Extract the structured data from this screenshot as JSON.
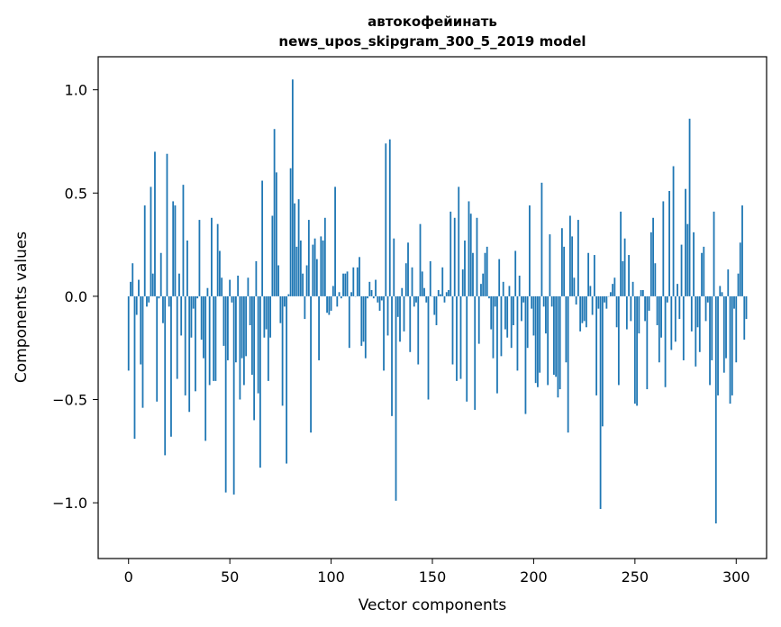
{
  "chart_data": {
    "type": "bar",
    "title_line1": "автокофейинать",
    "title_line2": "news_upos_skipgram_300_5_2019 model",
    "xlabel": "Vector components",
    "ylabel": "Components values",
    "xlim": [
      -15,
      315
    ],
    "ylim": [
      -1.27,
      1.16
    ],
    "xticks": [
      0,
      50,
      100,
      150,
      200,
      250,
      300
    ],
    "xtick_labels": [
      "0",
      "50",
      "100",
      "150",
      "200",
      "250",
      "300"
    ],
    "yticks": [
      -1.0,
      -0.5,
      0.0,
      0.5,
      1.0
    ],
    "ytick_labels": [
      "−1.0",
      "−0.5",
      "0.0",
      "0.5",
      "1.0"
    ],
    "bar_color": "#1f77b4",
    "grid": false,
    "values": [
      -0.36,
      0.07,
      0.16,
      -0.69,
      -0.09,
      0.08,
      -0.33,
      -0.54,
      0.44,
      -0.05,
      -0.03,
      0.53,
      0.11,
      0.7,
      -0.51,
      -0.01,
      0.21,
      -0.13,
      -0.77,
      0.69,
      -0.05,
      -0.68,
      0.46,
      0.44,
      -0.4,
      0.11,
      -0.19,
      0.54,
      -0.48,
      0.27,
      -0.56,
      -0.2,
      -0.06,
      -0.46,
      -0.01,
      0.37,
      -0.21,
      -0.3,
      -0.7,
      0.04,
      -0.43,
      0.38,
      -0.41,
      -0.41,
      0.35,
      0.22,
      0.09,
      -0.24,
      -0.95,
      -0.31,
      0.08,
      -0.03,
      -0.96,
      -0.32,
      0.1,
      -0.5,
      -0.3,
      -0.43,
      -0.29,
      0.09,
      -0.14,
      -0.38,
      -0.6,
      0.17,
      -0.47,
      -0.83,
      0.56,
      -0.2,
      -0.16,
      -0.41,
      -0.2,
      0.39,
      0.81,
      0.6,
      0.15,
      -0.13,
      -0.53,
      -0.05,
      -0.81,
      0.01,
      0.62,
      1.05,
      0.45,
      0.24,
      0.47,
      0.27,
      0.11,
      -0.11,
      0.15,
      0.37,
      -0.66,
      0.25,
      0.28,
      0.18,
      -0.31,
      0.29,
      0.27,
      0.38,
      -0.08,
      -0.09,
      -0.07,
      0.05,
      0.53,
      -0.05,
      0.02,
      -0.01,
      0.11,
      0.11,
      0.12,
      -0.25,
      0.02,
      0.14,
      0.0,
      0.14,
      0.19,
      -0.24,
      -0.22,
      -0.3,
      -0.01,
      0.07,
      0.03,
      -0.01,
      0.08,
      -0.03,
      -0.07,
      -0.02,
      -0.36,
      0.74,
      -0.19,
      0.76,
      -0.58,
      0.28,
      -0.99,
      -0.1,
      -0.22,
      0.04,
      -0.17,
      0.16,
      0.26,
      -0.27,
      0.14,
      -0.05,
      -0.03,
      -0.33,
      0.35,
      0.12,
      0.04,
      -0.03,
      -0.5,
      0.17,
      0.0,
      -0.09,
      -0.14,
      0.03,
      0.01,
      0.14,
      -0.03,
      0.02,
      0.03,
      0.41,
      -0.33,
      0.38,
      -0.41,
      0.53,
      -0.4,
      0.13,
      0.27,
      -0.51,
      0.46,
      0.4,
      0.21,
      -0.55,
      0.38,
      -0.23,
      0.06,
      0.11,
      0.21,
      0.24,
      -0.01,
      -0.16,
      -0.3,
      -0.05,
      -0.47,
      0.18,
      -0.29,
      0.07,
      -0.16,
      -0.2,
      0.05,
      -0.25,
      -0.14,
      0.22,
      -0.36,
      0.1,
      -0.12,
      -0.03,
      -0.57,
      -0.25,
      0.44,
      -0.06,
      -0.19,
      -0.42,
      -0.44,
      -0.37,
      0.55,
      -0.05,
      -0.18,
      -0.43,
      0.3,
      -0.05,
      -0.38,
      -0.39,
      -0.49,
      -0.45,
      0.33,
      0.24,
      -0.32,
      -0.66,
      0.39,
      0.29,
      0.09,
      -0.04,
      0.37,
      -0.17,
      -0.13,
      -0.12,
      -0.15,
      0.21,
      0.05,
      -0.09,
      0.2,
      -0.48,
      -0.06,
      -1.03,
      -0.63,
      -0.03,
      -0.06,
      0.0,
      0.02,
      0.06,
      0.09,
      -0.15,
      -0.43,
      0.41,
      0.17,
      0.28,
      -0.16,
      0.2,
      -0.12,
      0.07,
      -0.52,
      -0.53,
      -0.18,
      0.03,
      0.03,
      -0.12,
      -0.45,
      -0.07,
      0.31,
      0.38,
      0.16,
      -0.14,
      -0.32,
      -0.2,
      0.46,
      -0.44,
      -0.03,
      0.51,
      -0.26,
      0.63,
      -0.22,
      0.06,
      -0.11,
      0.25,
      -0.31,
      0.52,
      0.35,
      0.86,
      -0.17,
      0.31,
      -0.34,
      -0.15,
      -0.27,
      0.21,
      0.24,
      -0.12,
      -0.03,
      -0.43,
      -0.31,
      0.41,
      -1.1,
      -0.48,
      0.05,
      0.02,
      -0.37,
      -0.3,
      0.13,
      -0.52,
      -0.48,
      -0.06,
      -0.32,
      0.11,
      0.26,
      0.44,
      -0.21,
      -0.11
    ]
  }
}
